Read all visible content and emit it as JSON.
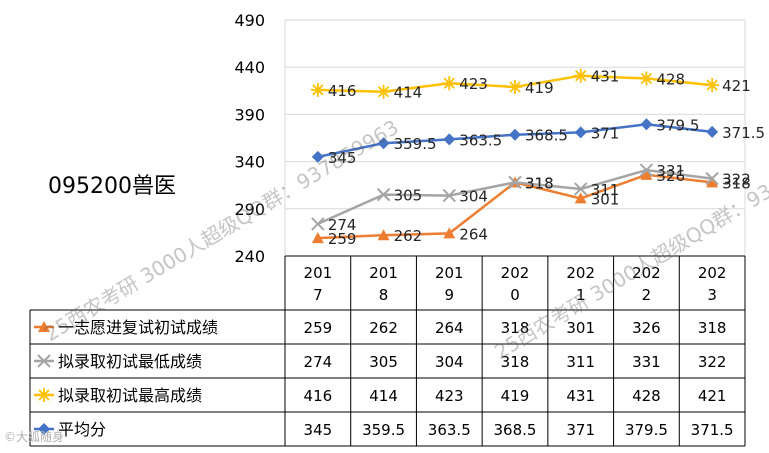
{
  "side_title": "095200兽医",
  "watermarks": [
    "25西农考研 3000人超级QQ群：937859963",
    "25西农考研 3000人超级QQ群：93"
  ],
  "corner_mark": "©大狐随身",
  "colors": {
    "orange": "#ED7D31",
    "gray": "#A5A5A5",
    "gold": "#FFC000",
    "blue": "#4472C4"
  },
  "chart_data": {
    "type": "line",
    "title": "",
    "xlabel": "",
    "ylabel": "",
    "categories": [
      "2017",
      "2018",
      "2019",
      "2020",
      "2021",
      "2022",
      "2023"
    ],
    "category_labels": [
      [
        "201",
        "7"
      ],
      [
        "201",
        "8"
      ],
      [
        "201",
        "9"
      ],
      [
        "202",
        "0"
      ],
      [
        "202",
        "1"
      ],
      [
        "202",
        "2"
      ],
      [
        "202",
        "3"
      ]
    ],
    "ylim": [
      240,
      490
    ],
    "yticks": [
      240,
      290,
      340,
      390,
      440,
      490
    ],
    "grid": true,
    "legend_placement": "data-table",
    "series": [
      {
        "key": "orange",
        "name": "一志愿进复试初试成绩",
        "marker": "triangle",
        "values": [
          259,
          262,
          264,
          318,
          301,
          326,
          318
        ],
        "value_labels": [
          "259",
          "262",
          "264",
          "318",
          "301",
          "326",
          "318"
        ]
      },
      {
        "key": "gray",
        "name": "拟录取初试最低成绩",
        "marker": "x",
        "values": [
          274,
          305,
          304,
          318,
          311,
          331,
          322
        ],
        "value_labels": [
          "274",
          "305",
          "304",
          "318",
          "311",
          "331",
          "322"
        ]
      },
      {
        "key": "gold",
        "name": "拟录取初试最高成绩",
        "marker": "star",
        "values": [
          416,
          414,
          423,
          419,
          431,
          428,
          421
        ],
        "value_labels": [
          "416",
          "414",
          "423",
          "419",
          "431",
          "428",
          "421"
        ]
      },
      {
        "key": "blue",
        "name": "平均分",
        "marker": "diamond",
        "values": [
          345,
          359.5,
          363.5,
          368.5,
          371,
          379.5,
          371.5
        ],
        "value_labels": [
          "345",
          "359.5",
          "363.5",
          "368.5",
          "371",
          "379.5",
          "371.5"
        ]
      }
    ]
  }
}
